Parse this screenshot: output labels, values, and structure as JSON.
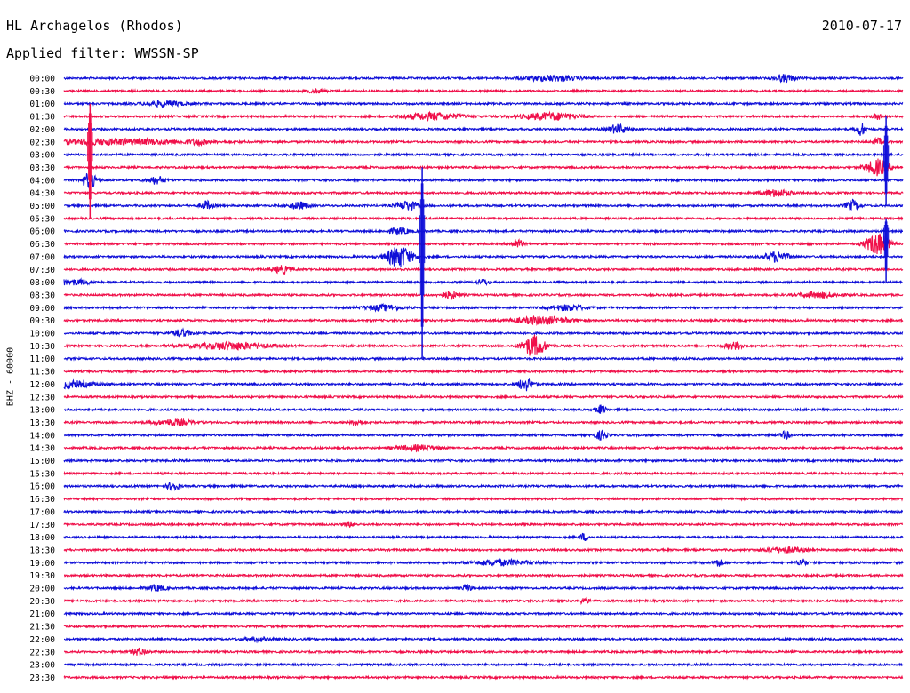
{
  "header": {
    "station": "HL Archagelos (Rhodos)",
    "date": "2010-07-17",
    "filter": "Applied filter: WWSSN-SP"
  },
  "channel_label": "BHZ - 60000",
  "colors": {
    "even_rows": "#1010d8",
    "odd_rows": "#f0104a"
  },
  "chart_data": {
    "type": "line",
    "title": "HL Archagelos (Rhodos)",
    "subtitle": "Applied filter: WWSSN-SP",
    "ylabel": "BHZ - 60000",
    "row_labels": [
      "00:00",
      "00:30",
      "01:00",
      "01:30",
      "02:00",
      "02:30",
      "03:00",
      "03:30",
      "04:00",
      "04:30",
      "05:00",
      "05:30",
      "06:00",
      "06:30",
      "07:00",
      "07:30",
      "08:00",
      "08:30",
      "09:00",
      "09:30",
      "10:00",
      "10:30",
      "11:00",
      "11:30",
      "12:00",
      "12:30",
      "13:00",
      "13:30",
      "14:00",
      "14:30",
      "15:00",
      "15:30",
      "16:00",
      "16:30",
      "17:00",
      "17:30",
      "18:00",
      "18:30",
      "19:00",
      "19:30",
      "20:00",
      "20:30",
      "21:00",
      "21:30",
      "22:00",
      "22:30",
      "23:00",
      "23:30"
    ],
    "grid": false,
    "events": [
      {
        "row": 0,
        "pos": 0.58,
        "amp": 3,
        "width": 0.03
      },
      {
        "row": 0,
        "pos": 0.86,
        "amp": 4,
        "width": 0.01
      },
      {
        "row": 1,
        "pos": 0.3,
        "amp": 2,
        "width": 0.01
      },
      {
        "row": 2,
        "pos": 0.12,
        "amp": 3,
        "width": 0.02
      },
      {
        "row": 3,
        "pos": 0.44,
        "amp": 4,
        "width": 0.03
      },
      {
        "row": 3,
        "pos": 0.58,
        "amp": 4,
        "width": 0.03
      },
      {
        "row": 3,
        "pos": 0.97,
        "amp": 3,
        "width": 0.005
      },
      {
        "row": 4,
        "pos": 0.66,
        "amp": 5,
        "width": 0.01
      },
      {
        "row": 4,
        "pos": 0.95,
        "amp": 7,
        "width": 0.005
      },
      {
        "row": 5,
        "pos": 0.07,
        "amp": 3,
        "width": 0.08
      },
      {
        "row": 5,
        "pos": 0.16,
        "amp": 3,
        "width": 0.005
      },
      {
        "row": 5,
        "pos": 0.97,
        "amp": 4,
        "width": 0.005
      },
      {
        "row": 7,
        "pos": 0.97,
        "amp": 9,
        "width": 0.012
      },
      {
        "row": 8,
        "pos": 0.03,
        "amp": 8,
        "width": 0.008
      },
      {
        "row": 8,
        "pos": 0.11,
        "amp": 4,
        "width": 0.01
      },
      {
        "row": 9,
        "pos": 0.85,
        "amp": 4,
        "width": 0.015
      },
      {
        "row": 10,
        "pos": 0.17,
        "amp": 5,
        "width": 0.006
      },
      {
        "row": 10,
        "pos": 0.28,
        "amp": 4,
        "width": 0.01
      },
      {
        "row": 10,
        "pos": 0.41,
        "amp": 5,
        "width": 0.012
      },
      {
        "row": 10,
        "pos": 0.94,
        "amp": 6,
        "width": 0.007
      },
      {
        "row": 12,
        "pos": 0.4,
        "amp": 4,
        "width": 0.01
      },
      {
        "row": 13,
        "pos": 0.54,
        "amp": 5,
        "width": 0.006
      },
      {
        "row": 13,
        "pos": 0.97,
        "amp": 12,
        "width": 0.012
      },
      {
        "row": 14,
        "pos": 0.4,
        "amp": 12,
        "width": 0.014
      },
      {
        "row": 14,
        "pos": 0.85,
        "amp": 6,
        "width": 0.012
      },
      {
        "row": 15,
        "pos": 0.26,
        "amp": 4,
        "width": 0.01
      },
      {
        "row": 16,
        "pos": 0.01,
        "amp": 3,
        "width": 0.02
      },
      {
        "row": 16,
        "pos": 0.5,
        "amp": 3,
        "width": 0.006
      },
      {
        "row": 17,
        "pos": 0.46,
        "amp": 4,
        "width": 0.01
      },
      {
        "row": 17,
        "pos": 0.9,
        "amp": 3,
        "width": 0.02
      },
      {
        "row": 18,
        "pos": 0.38,
        "amp": 3,
        "width": 0.02
      },
      {
        "row": 18,
        "pos": 0.6,
        "amp": 3,
        "width": 0.02
      },
      {
        "row": 19,
        "pos": 0.57,
        "amp": 4,
        "width": 0.03
      },
      {
        "row": 20,
        "pos": 0.14,
        "amp": 4,
        "width": 0.01
      },
      {
        "row": 21,
        "pos": 0.2,
        "amp": 4,
        "width": 0.04
      },
      {
        "row": 21,
        "pos": 0.56,
        "amp": 12,
        "width": 0.012
      },
      {
        "row": 21,
        "pos": 0.8,
        "amp": 4,
        "width": 0.01
      },
      {
        "row": 24,
        "pos": 0.0,
        "amp": 4,
        "width": 0.03
      },
      {
        "row": 24,
        "pos": 0.55,
        "amp": 7,
        "width": 0.008
      },
      {
        "row": 26,
        "pos": 0.64,
        "amp": 5,
        "width": 0.005
      },
      {
        "row": 27,
        "pos": 0.13,
        "amp": 3,
        "width": 0.02
      },
      {
        "row": 27,
        "pos": 0.35,
        "amp": 3,
        "width": 0.006
      },
      {
        "row": 28,
        "pos": 0.64,
        "amp": 5,
        "width": 0.006
      },
      {
        "row": 28,
        "pos": 0.86,
        "amp": 4,
        "width": 0.005
      },
      {
        "row": 29,
        "pos": 0.42,
        "amp": 3,
        "width": 0.02
      },
      {
        "row": 32,
        "pos": 0.13,
        "amp": 5,
        "width": 0.006
      },
      {
        "row": 35,
        "pos": 0.34,
        "amp": 3,
        "width": 0.005
      },
      {
        "row": 36,
        "pos": 0.62,
        "amp": 4,
        "width": 0.005
      },
      {
        "row": 37,
        "pos": 0.86,
        "amp": 3,
        "width": 0.02
      },
      {
        "row": 38,
        "pos": 0.52,
        "amp": 3,
        "width": 0.03
      },
      {
        "row": 38,
        "pos": 0.78,
        "amp": 4,
        "width": 0.005
      },
      {
        "row": 38,
        "pos": 0.88,
        "amp": 4,
        "width": 0.005
      },
      {
        "row": 40,
        "pos": 0.11,
        "amp": 3,
        "width": 0.01
      },
      {
        "row": 40,
        "pos": 0.48,
        "amp": 4,
        "width": 0.005
      },
      {
        "row": 41,
        "pos": 0.62,
        "amp": 3,
        "width": 0.005
      },
      {
        "row": 44,
        "pos": 0.23,
        "amp": 2,
        "width": 0.015
      },
      {
        "row": 45,
        "pos": 0.09,
        "amp": 4,
        "width": 0.008
      }
    ],
    "long_spikes": [
      {
        "row": 5,
        "pos": 0.031,
        "up": 3,
        "down": 6
      },
      {
        "row": 6,
        "pos": 0.98,
        "up": 3,
        "down": 4
      },
      {
        "row": 12,
        "pos": 0.427,
        "up": 5,
        "down": 10
      },
      {
        "row": 12,
        "pos": 0.98,
        "up": 1,
        "down": 4
      }
    ]
  }
}
